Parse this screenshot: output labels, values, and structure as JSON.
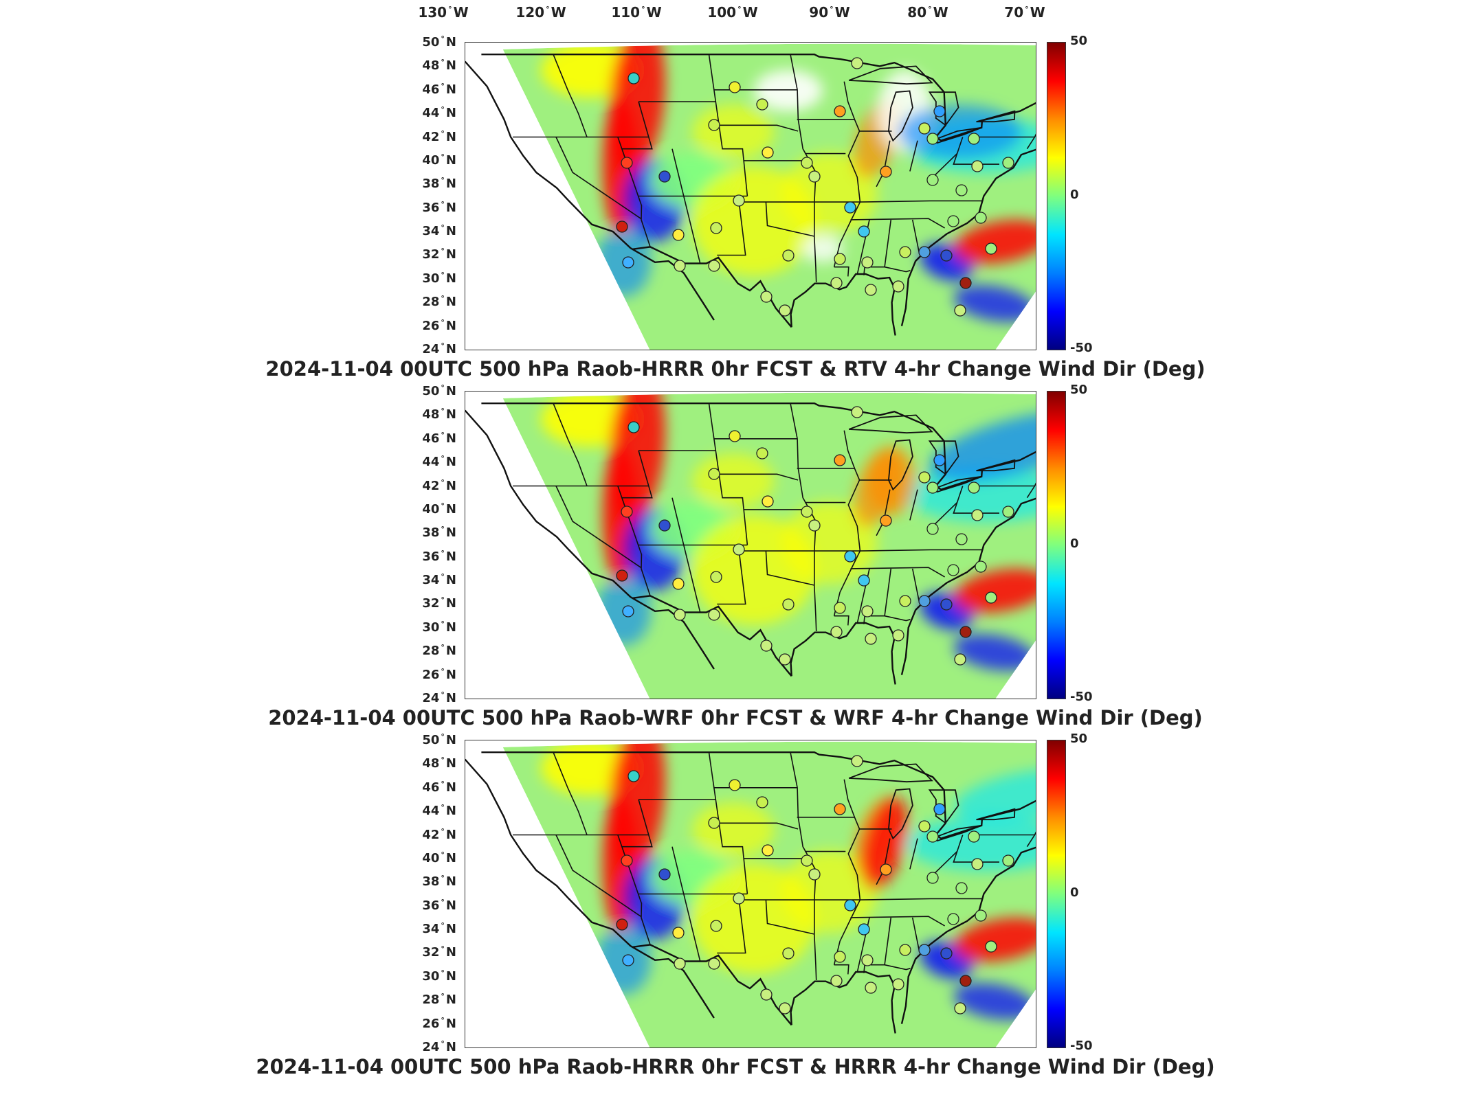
{
  "lon_labels": [
    {
      "deg": "130",
      "hemi": "W"
    },
    {
      "deg": "120",
      "hemi": "W"
    },
    {
      "deg": "110",
      "hemi": "W"
    },
    {
      "deg": "100",
      "hemi": "W"
    },
    {
      "deg": "90",
      "hemi": "W"
    },
    {
      "deg": "80",
      "hemi": "W"
    },
    {
      "deg": "70",
      "hemi": "W"
    }
  ],
  "lat_labels": [
    {
      "deg": "50",
      "hemi": "N"
    },
    {
      "deg": "48",
      "hemi": "N"
    },
    {
      "deg": "46",
      "hemi": "N"
    },
    {
      "deg": "44",
      "hemi": "N"
    },
    {
      "deg": "42",
      "hemi": "N"
    },
    {
      "deg": "40",
      "hemi": "N"
    },
    {
      "deg": "38",
      "hemi": "N"
    },
    {
      "deg": "36",
      "hemi": "N"
    },
    {
      "deg": "34",
      "hemi": "N"
    },
    {
      "deg": "32",
      "hemi": "N"
    },
    {
      "deg": "30",
      "hemi": "N"
    },
    {
      "deg": "28",
      "hemi": "N"
    },
    {
      "deg": "26",
      "hemi": "N"
    },
    {
      "deg": "24",
      "hemi": "N"
    }
  ],
  "colorbar": {
    "max_label": "50",
    "mid_label": "0",
    "min_label": "-50",
    "colors": [
      "#800000",
      "#ff0000",
      "#ff8c00",
      "#ffff00",
      "#7fff7f",
      "#00e5ff",
      "#0080ff",
      "#0000ff",
      "#000080"
    ]
  },
  "panels": [
    {
      "title": "2024-11-04 00UTC 500 hPa Raob-HRRR 0hr FCST & RTV 4-hr Change Wind Dir (Deg)"
    },
    {
      "title": "2024-11-04 00UTC 500 hPa Raob-WRF 0hr FCST & WRF 4-hr Change Wind Dir (Deg)"
    },
    {
      "title": "2024-11-04 00UTC 500 hPa Raob-HRRR 0hr FCST & HRRR 4-hr Change Wind Dir (Deg)"
    }
  ]
}
